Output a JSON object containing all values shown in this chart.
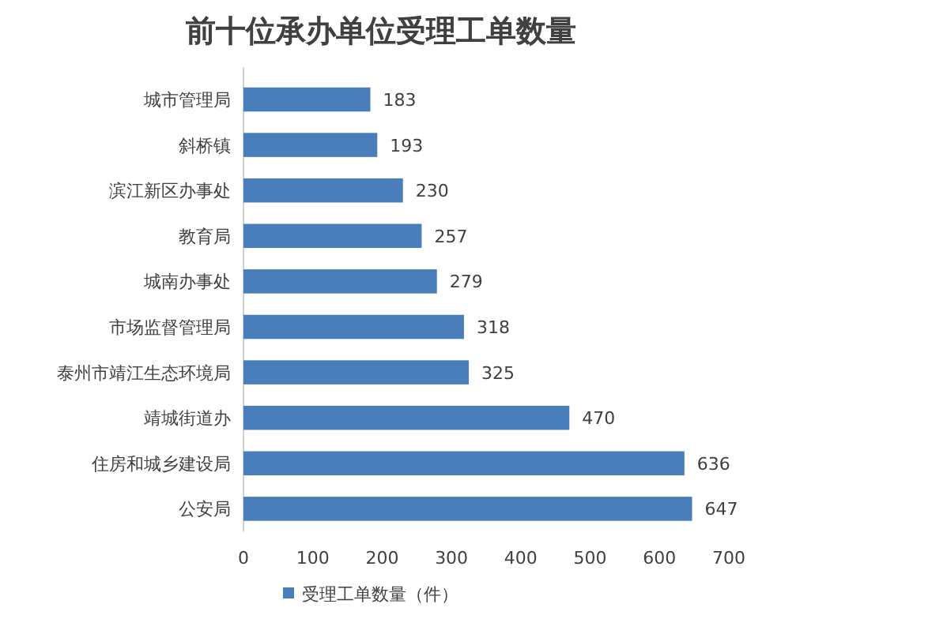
{
  "chart_data": {
    "type": "bar",
    "orientation": "horizontal",
    "title": "前十位承办单位受理工单数量",
    "categories": [
      "城市管理局",
      "斜桥镇",
      "滨江新区办事处",
      "教育局",
      "城南办事处",
      "市场监督管理局",
      "泰州市靖江生态环境局",
      "靖城街道办",
      "住房和城乡建设局",
      "公安局"
    ],
    "series": [
      {
        "name": "受理工单数量（件）",
        "color": "#4a7ebb",
        "values": [
          183,
          193,
          230,
          257,
          279,
          318,
          325,
          470,
          636,
          647
        ]
      }
    ],
    "xlim": [
      0,
      700
    ],
    "xticks": [
      0,
      100,
      200,
      300,
      400,
      500,
      600,
      700
    ],
    "data_labels": true,
    "legend": "bottom",
    "grid": false
  }
}
